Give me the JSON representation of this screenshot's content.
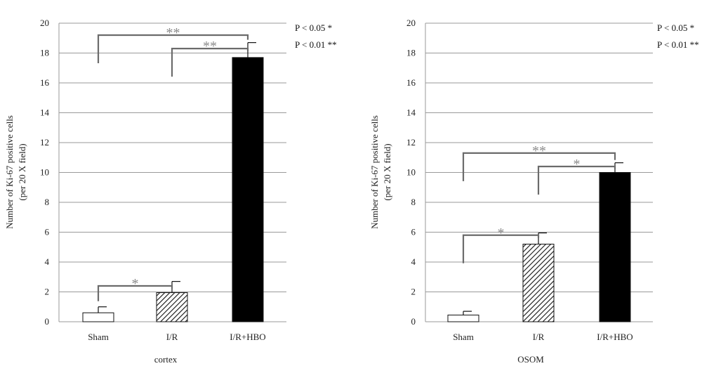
{
  "colors": {
    "grid": "#9a9a9a",
    "bracket": "#6b6b6b",
    "star": "#8a8a8a",
    "bar_black": "#000000"
  },
  "chart_data": [
    {
      "type": "bar",
      "xlabel": "cortex",
      "ylabel_lines": [
        "Number of Ki-67 positive cells",
        "(per 20 X field)"
      ],
      "ylim": [
        0,
        20
      ],
      "yticks": [
        "0",
        "2",
        "4",
        "6",
        "8",
        "10",
        "12",
        "14",
        "16",
        "18",
        "20"
      ],
      "categories": [
        "Sham",
        "I/R",
        "I/R+HBO"
      ],
      "values": [
        0.6,
        1.95,
        17.7
      ],
      "errors": [
        0.4,
        0.75,
        1.0
      ],
      "fills": [
        "white",
        "hatch",
        "black"
      ],
      "pvalue_legend": [
        "P < 0.05 *",
        "P < 0.01 **"
      ],
      "significance": [
        {
          "from": 0,
          "to": 2,
          "y": 19.2,
          "label": "**"
        },
        {
          "from": 1,
          "to": 2,
          "y": 18.3,
          "label": "**"
        },
        {
          "from": 0,
          "to": 1,
          "y": 2.4,
          "label": "*"
        }
      ]
    },
    {
      "type": "bar",
      "xlabel": "OSOM",
      "ylabel_lines": [
        "Number of Ki-67 positive cells",
        "(per 20 X field)"
      ],
      "ylim": [
        0,
        20
      ],
      "yticks": [
        "0",
        "2",
        "4",
        "6",
        "8",
        "10",
        "12",
        "14",
        "16",
        "18",
        "20"
      ],
      "categories": [
        "Sham",
        "I/R",
        "I/R+HBO"
      ],
      "values": [
        0.45,
        5.2,
        10.0
      ],
      "errors": [
        0.25,
        0.75,
        0.65
      ],
      "fills": [
        "white",
        "hatch",
        "black"
      ],
      "pvalue_legend": [
        "P < 0.05 *",
        "P < 0.01 **"
      ],
      "significance": [
        {
          "from": 0,
          "to": 2,
          "y": 11.3,
          "label": "**"
        },
        {
          "from": 1,
          "to": 2,
          "y": 10.4,
          "label": "*"
        },
        {
          "from": 0,
          "to": 1,
          "y": 5.8,
          "label": "*"
        }
      ]
    }
  ]
}
